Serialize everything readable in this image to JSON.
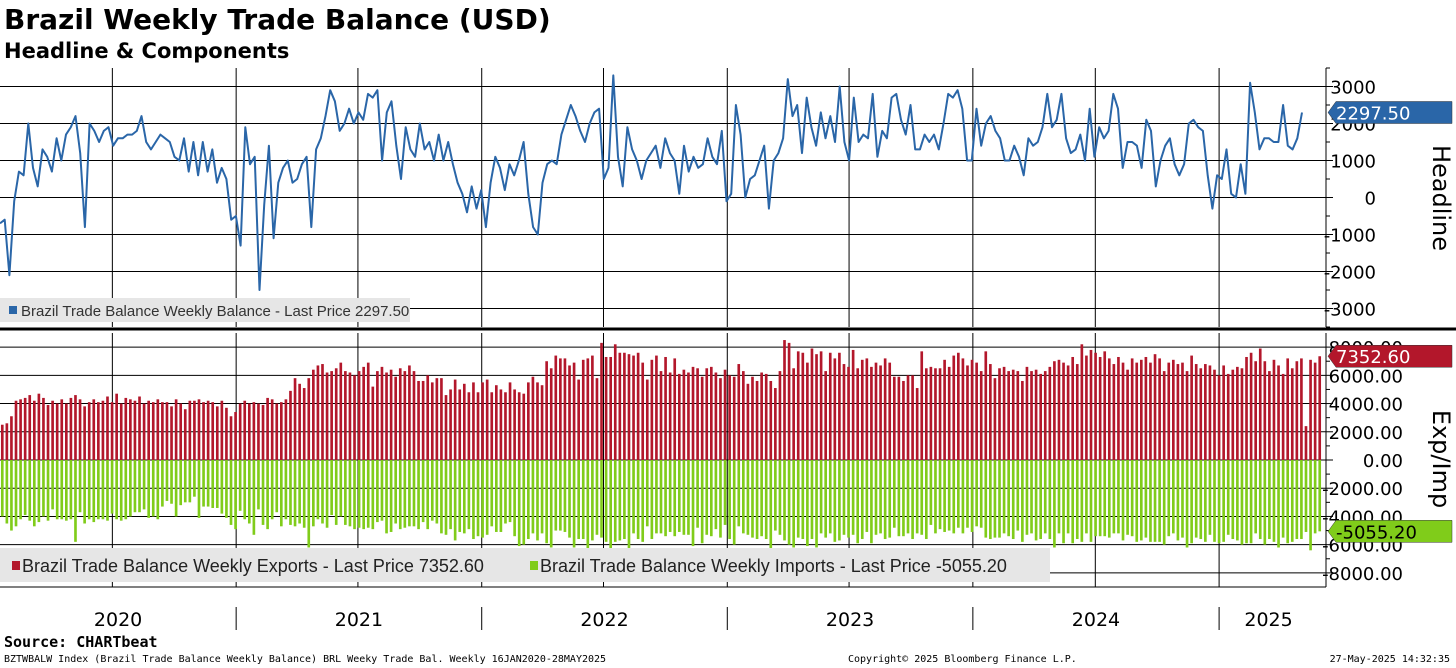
{
  "title": "Brazil Weekly Trade Balance (USD)",
  "subtitle": "Headline & Components",
  "source": "Source: CHARTbeat",
  "footer": {
    "left": "BZTWBALW Index (Brazil Trade Balance Weekly Balance) BRL Weeky Trade Bal. Weekly 16JAN2020-28MAY2025",
    "middle": "Copyright© 2025 Bloomberg Finance L.P.",
    "right": "27-May-2025 14:32:35"
  },
  "colors": {
    "headline": "#2a66a8",
    "exports": "#b3172b",
    "imports": "#80cc1a",
    "grid": "#000000"
  },
  "chart_data": [
    {
      "type": "line",
      "panel": "top",
      "ylabel": "Headline",
      "ylim": [
        -3500,
        3500
      ],
      "yticks": [
        -3000,
        -2000,
        -1000,
        0,
        1000,
        2000,
        3000
      ],
      "x_start": "2020-01-16",
      "x_end": "2025-05-28",
      "x_tick_labels": [
        "2020",
        "2021",
        "2022",
        "2023",
        "2024",
        "2025"
      ],
      "grid": true,
      "legend_position": "bottom-left",
      "legend": "Brazil Trade Balance Weekly Balance - Last Price 2297.50",
      "last_value_label": "2297.50",
      "series": [
        {
          "name": "Brazil Trade Balance Weekly Balance",
          "values": [
            -700,
            -600,
            -2100,
            -100,
            700,
            600,
            2000,
            800,
            300,
            1300,
            1100,
            700,
            1600,
            1000,
            1700,
            1900,
            2200,
            1200,
            -800,
            2000,
            1800,
            1500,
            1800,
            1900,
            1400,
            1600,
            1600,
            1700,
            1700,
            1800,
            2200,
            1500,
            1300,
            1500,
            1700,
            1600,
            1500,
            1100,
            1000,
            1600,
            700,
            1500,
            600,
            1500,
            700,
            1300,
            400,
            800,
            500,
            -600,
            -500,
            -1300,
            1900,
            900,
            1100,
            -2500,
            -200,
            1400,
            -1100,
            400,
            800,
            1000,
            400,
            500,
            900,
            1100,
            -800,
            1300,
            1600,
            2200,
            2900,
            2600,
            1800,
            2000,
            2400,
            2000,
            2300,
            2100,
            2800,
            2700,
            2900,
            1000,
            2300,
            2600,
            1400,
            500,
            1900,
            1300,
            1100,
            2000,
            1300,
            1500,
            1000,
            1700,
            1000,
            1500,
            900,
            400,
            100,
            -400,
            300,
            -300,
            200,
            -800,
            400,
            1100,
            800,
            200,
            900,
            600,
            1000,
            1500,
            100,
            -800,
            -1000,
            400,
            900,
            1000,
            900,
            1700,
            2100,
            2500,
            2200,
            1800,
            1500,
            2000,
            2300,
            2400,
            500,
            800,
            3300,
            1100,
            300,
            1900,
            1300,
            1000,
            500,
            1000,
            1200,
            1400,
            800,
            1600,
            1200,
            1000,
            100,
            1400,
            700,
            1100,
            800,
            900,
            1600,
            1100,
            900,
            1800,
            -100,
            100,
            2500,
            1700,
            0,
            500,
            600,
            1000,
            1400,
            -300,
            1000,
            1200,
            1600,
            3200,
            2200,
            2500,
            1200,
            2700,
            1900,
            1400,
            2300,
            1600,
            2200,
            1500,
            3000,
            1500,
            1000,
            2700,
            1500,
            1700,
            1600,
            2800,
            1100,
            1800,
            1600,
            2700,
            2800,
            2100,
            1700,
            2500,
            1300,
            1300,
            1700,
            1500,
            1700,
            1300,
            2000,
            2800,
            2700,
            2900,
            2400,
            1000,
            1000,
            2400,
            1400,
            2000,
            2200,
            1800,
            1600,
            1000,
            1000,
            1400,
            1100,
            600,
            1600,
            1400,
            1500,
            1900,
            2800,
            1900,
            2100,
            2800,
            1600,
            1200,
            1300,
            1700,
            1000,
            2400,
            1100,
            1900,
            1600,
            1800,
            2800,
            2400,
            800,
            1500,
            1500,
            1400,
            800,
            2100,
            1800,
            300,
            1000,
            1400,
            1600,
            900,
            600,
            900,
            2000,
            2100,
            1900,
            1800,
            600,
            -300,
            600,
            500,
            1300,
            100,
            0,
            900,
            100,
            3100,
            2300,
            1300,
            1600,
            1600,
            1500,
            1500,
            2500,
            1400,
            1300,
            1600,
            2297.5
          ]
        }
      ]
    },
    {
      "type": "bar",
      "panel": "bottom",
      "ylabel": "Exp/Imp",
      "ylim": [
        -9000,
        9000
      ],
      "yticks": [
        -8000,
        -6000,
        -4000,
        -2000,
        0,
        2000,
        4000,
        6000,
        8000
      ],
      "ytick_labels": [
        "-8000.00",
        "-6000.00",
        "-4000.00",
        "-2000.00",
        "0.00",
        "2000.00",
        "4000.00",
        "6000.00",
        "8000.00"
      ],
      "x_start": "2020-01-16",
      "x_end": "2025-05-28",
      "grid": true,
      "legend_position": "bottom-left",
      "legend_exports": "Brazil Trade Balance Weekly Exports - Last Price 7352.60",
      "legend_imports": "Brazil Trade Balance Weekly Imports - Last Price -5055.20",
      "last_export_label": "7352.60",
      "last_import_label": "-5055.20",
      "series": [
        {
          "name": "Brazil Trade Balance Weekly Exports",
          "values": [
            2500,
            2600,
            3100,
            4200,
            4300,
            4400,
            4600,
            4200,
            4700,
            4400,
            3900,
            4200,
            4000,
            4300,
            4000,
            4400,
            4600,
            4300,
            3800,
            4100,
            4300,
            4100,
            4200,
            4500,
            4100,
            4700,
            4000,
            4400,
            4300,
            4200,
            4500,
            4000,
            4200,
            4100,
            4300,
            4100,
            4100,
            3800,
            4300,
            4000,
            3600,
            4200,
            4200,
            4300,
            4100,
            4200,
            4100,
            3800,
            4200,
            3700,
            3100,
            3400,
            4000,
            4200,
            4000,
            4100,
            4000,
            3900,
            4400,
            4300,
            4000,
            4100,
            4300,
            4900,
            5800,
            5400,
            5100,
            5800,
            6400,
            6700,
            6800,
            6200,
            6300,
            6500,
            6900,
            6300,
            6200,
            6000,
            6300,
            6600,
            6900,
            5200,
            6300,
            6600,
            6200,
            6400,
            5900,
            6500,
            6300,
            6700,
            6300,
            5600,
            5600,
            6000,
            5500,
            5800,
            5800,
            4600,
            5000,
            5700,
            5000,
            5400,
            4800,
            5500,
            4800,
            5500,
            5700,
            4800,
            5300,
            5000,
            4800,
            5500,
            5000,
            4800,
            4700,
            5500,
            5900,
            5500,
            5300,
            7000,
            6500,
            7400,
            7200,
            7200,
            6700,
            6900,
            5700,
            7100,
            7200,
            7400,
            5800,
            8300,
            7300,
            7300,
            8200,
            7600,
            7600,
            7500,
            7400,
            7600,
            6900,
            5700,
            7100,
            7400,
            6300,
            7300,
            6200,
            7200,
            6100,
            6400,
            6200,
            6600,
            6500,
            5900,
            6500,
            6600,
            6200,
            5800,
            6400,
            6000,
            5900,
            6800,
            6300,
            5400,
            5900,
            5600,
            6200,
            6100,
            5600,
            5100,
            6300,
            8500,
            8300,
            6500,
            7700,
            7600,
            6900,
            7900,
            7500,
            7700,
            6300,
            7600,
            7200,
            7600,
            6800,
            6600,
            7800,
            6500,
            7100,
            7200,
            6600,
            6900,
            6700,
            7200,
            6900,
            5900,
            5900,
            5600,
            6000,
            6000,
            5100,
            7700,
            6500,
            6600,
            6500,
            6500,
            7100,
            6600,
            7400,
            7600,
            7200,
            6700,
            7100,
            6900,
            6300,
            7700,
            6800,
            5800,
            6500,
            6600,
            6300,
            6400,
            6300,
            5600,
            6600,
            6300,
            6400,
            6100,
            6300,
            6600,
            7000,
            7100,
            6900,
            6700,
            7300,
            6800,
            8200,
            7400,
            7800,
            7600,
            7300,
            7700,
            7200,
            6800,
            7300,
            6900,
            6400,
            7200,
            6900,
            7100,
            7300,
            6900,
            7500,
            7200,
            6300,
            6900,
            7100,
            6800,
            6900,
            6300,
            7400,
            6800,
            6500,
            6800,
            6700,
            6400,
            6000,
            6700,
            6100,
            6400,
            6600,
            6500,
            7300,
            7600,
            7000,
            7900,
            7000,
            6300,
            7100,
            6700,
            6100,
            7200,
            6500,
            7000,
            7200,
            2400,
            7100,
            6900,
            7352.6
          ]
        },
        {
          "name": "Brazil Trade Balance Weekly Imports",
          "values": [
            -4000,
            -4500,
            -5000,
            -4700,
            -4200,
            -3900,
            -4300,
            -4700,
            -4400,
            -4000,
            -4300,
            -3500,
            -4200,
            -4200,
            -4300,
            -4200,
            -5800,
            -3700,
            -4500,
            -4200,
            -4400,
            -4200,
            -4200,
            -4300,
            -3800,
            -4200,
            -4300,
            -4200,
            -4000,
            -3700,
            -3700,
            -3500,
            -4100,
            -4000,
            -4200,
            -3300,
            -2900,
            -3100,
            -4000,
            -3200,
            -3000,
            -3000,
            -2600,
            -4100,
            -3300,
            -3300,
            -3400,
            -3400,
            -3800,
            -4100,
            -4600,
            -4900,
            -3600,
            -4200,
            -4500,
            -5300,
            -3500,
            -4600,
            -4900,
            -4200,
            -3700,
            -4700,
            -4200,
            -4600,
            -4700,
            -4500,
            -4800,
            -6200,
            -4700,
            -4200,
            -4500,
            -4800,
            -3900,
            -4600,
            -4000,
            -4600,
            -4700,
            -4900,
            -4800,
            -4900,
            -4800,
            -4900,
            -4400,
            -4300,
            -5200,
            -5100,
            -4500,
            -4900,
            -4800,
            -4700,
            -4700,
            -4900,
            -4400,
            -4900,
            -4300,
            -4500,
            -5200,
            -5300,
            -4900,
            -5700,
            -5100,
            -5200,
            -4900,
            -5600,
            -5400,
            -5500,
            -5300,
            -4700,
            -5100,
            -5100,
            -4500,
            -4400,
            -5400,
            -6100,
            -6000,
            -5600,
            -5200,
            -5700,
            -5200,
            -5900,
            -6200,
            -5000,
            -5000,
            -5100,
            -5500,
            -6200,
            -5600,
            -5600,
            -6500,
            -5700,
            -5300,
            -5500,
            -5800,
            -6400,
            -5800,
            -5700,
            -5600,
            -6300,
            -5200,
            -5600,
            -5800,
            -4700,
            -5600,
            -5200,
            -5200,
            -5400,
            -5100,
            -5400,
            -5100,
            -5300,
            -5300,
            -6100,
            -4800,
            -5900,
            -5300,
            -5400,
            -4900,
            -5500,
            -4600,
            -5600,
            -6000,
            -4700,
            -5200,
            -5300,
            -5500,
            -5600,
            -5400,
            -5600,
            -6300,
            -5000,
            -5300,
            -5700,
            -6000,
            -6200,
            -5500,
            -5600,
            -6100,
            -5600,
            -6200,
            -5200,
            -5500,
            -5200,
            -5800,
            -5700,
            -5300,
            -5500,
            -5300,
            -5900,
            -5600,
            -5100,
            -5900,
            -5300,
            -5200,
            -5600,
            -5500,
            -4800,
            -5400,
            -5400,
            -5200,
            -5600,
            -5200,
            -5300,
            -5600,
            -4600,
            -5200,
            -4900,
            -5100,
            -5000,
            -5200,
            -4800,
            -5200,
            -4800,
            -5100,
            -4700,
            -4800,
            -5500,
            -5600,
            -5500,
            -5500,
            -5200,
            -5400,
            -5600,
            -5000,
            -5800,
            -5300,
            -5200,
            -5700,
            -5600,
            -5200,
            -5600,
            -6200,
            -5200,
            -5900,
            -5200,
            -5900,
            -5600,
            -5800,
            -5200,
            -5800,
            -5400,
            -5400,
            -5400,
            -5500,
            -5200,
            -5200,
            -5700,
            -5300,
            -5400,
            -5800,
            -5700,
            -5500,
            -5800,
            -5800,
            -5800,
            -6000,
            -5400,
            -5200,
            -5700,
            -5500,
            -6200,
            -5900,
            -5500,
            -5600,
            -5800,
            -5300,
            -5800,
            -5900,
            -5800,
            -5300,
            -5600,
            -5700,
            -6000,
            -5900,
            -5900,
            -5200,
            -5600,
            -6000,
            -5600,
            -5800,
            -6200,
            -5500,
            -5900,
            -5800,
            -5600,
            -5600,
            -5100,
            -6400,
            -5200,
            -5055.2
          ]
        }
      ]
    }
  ]
}
